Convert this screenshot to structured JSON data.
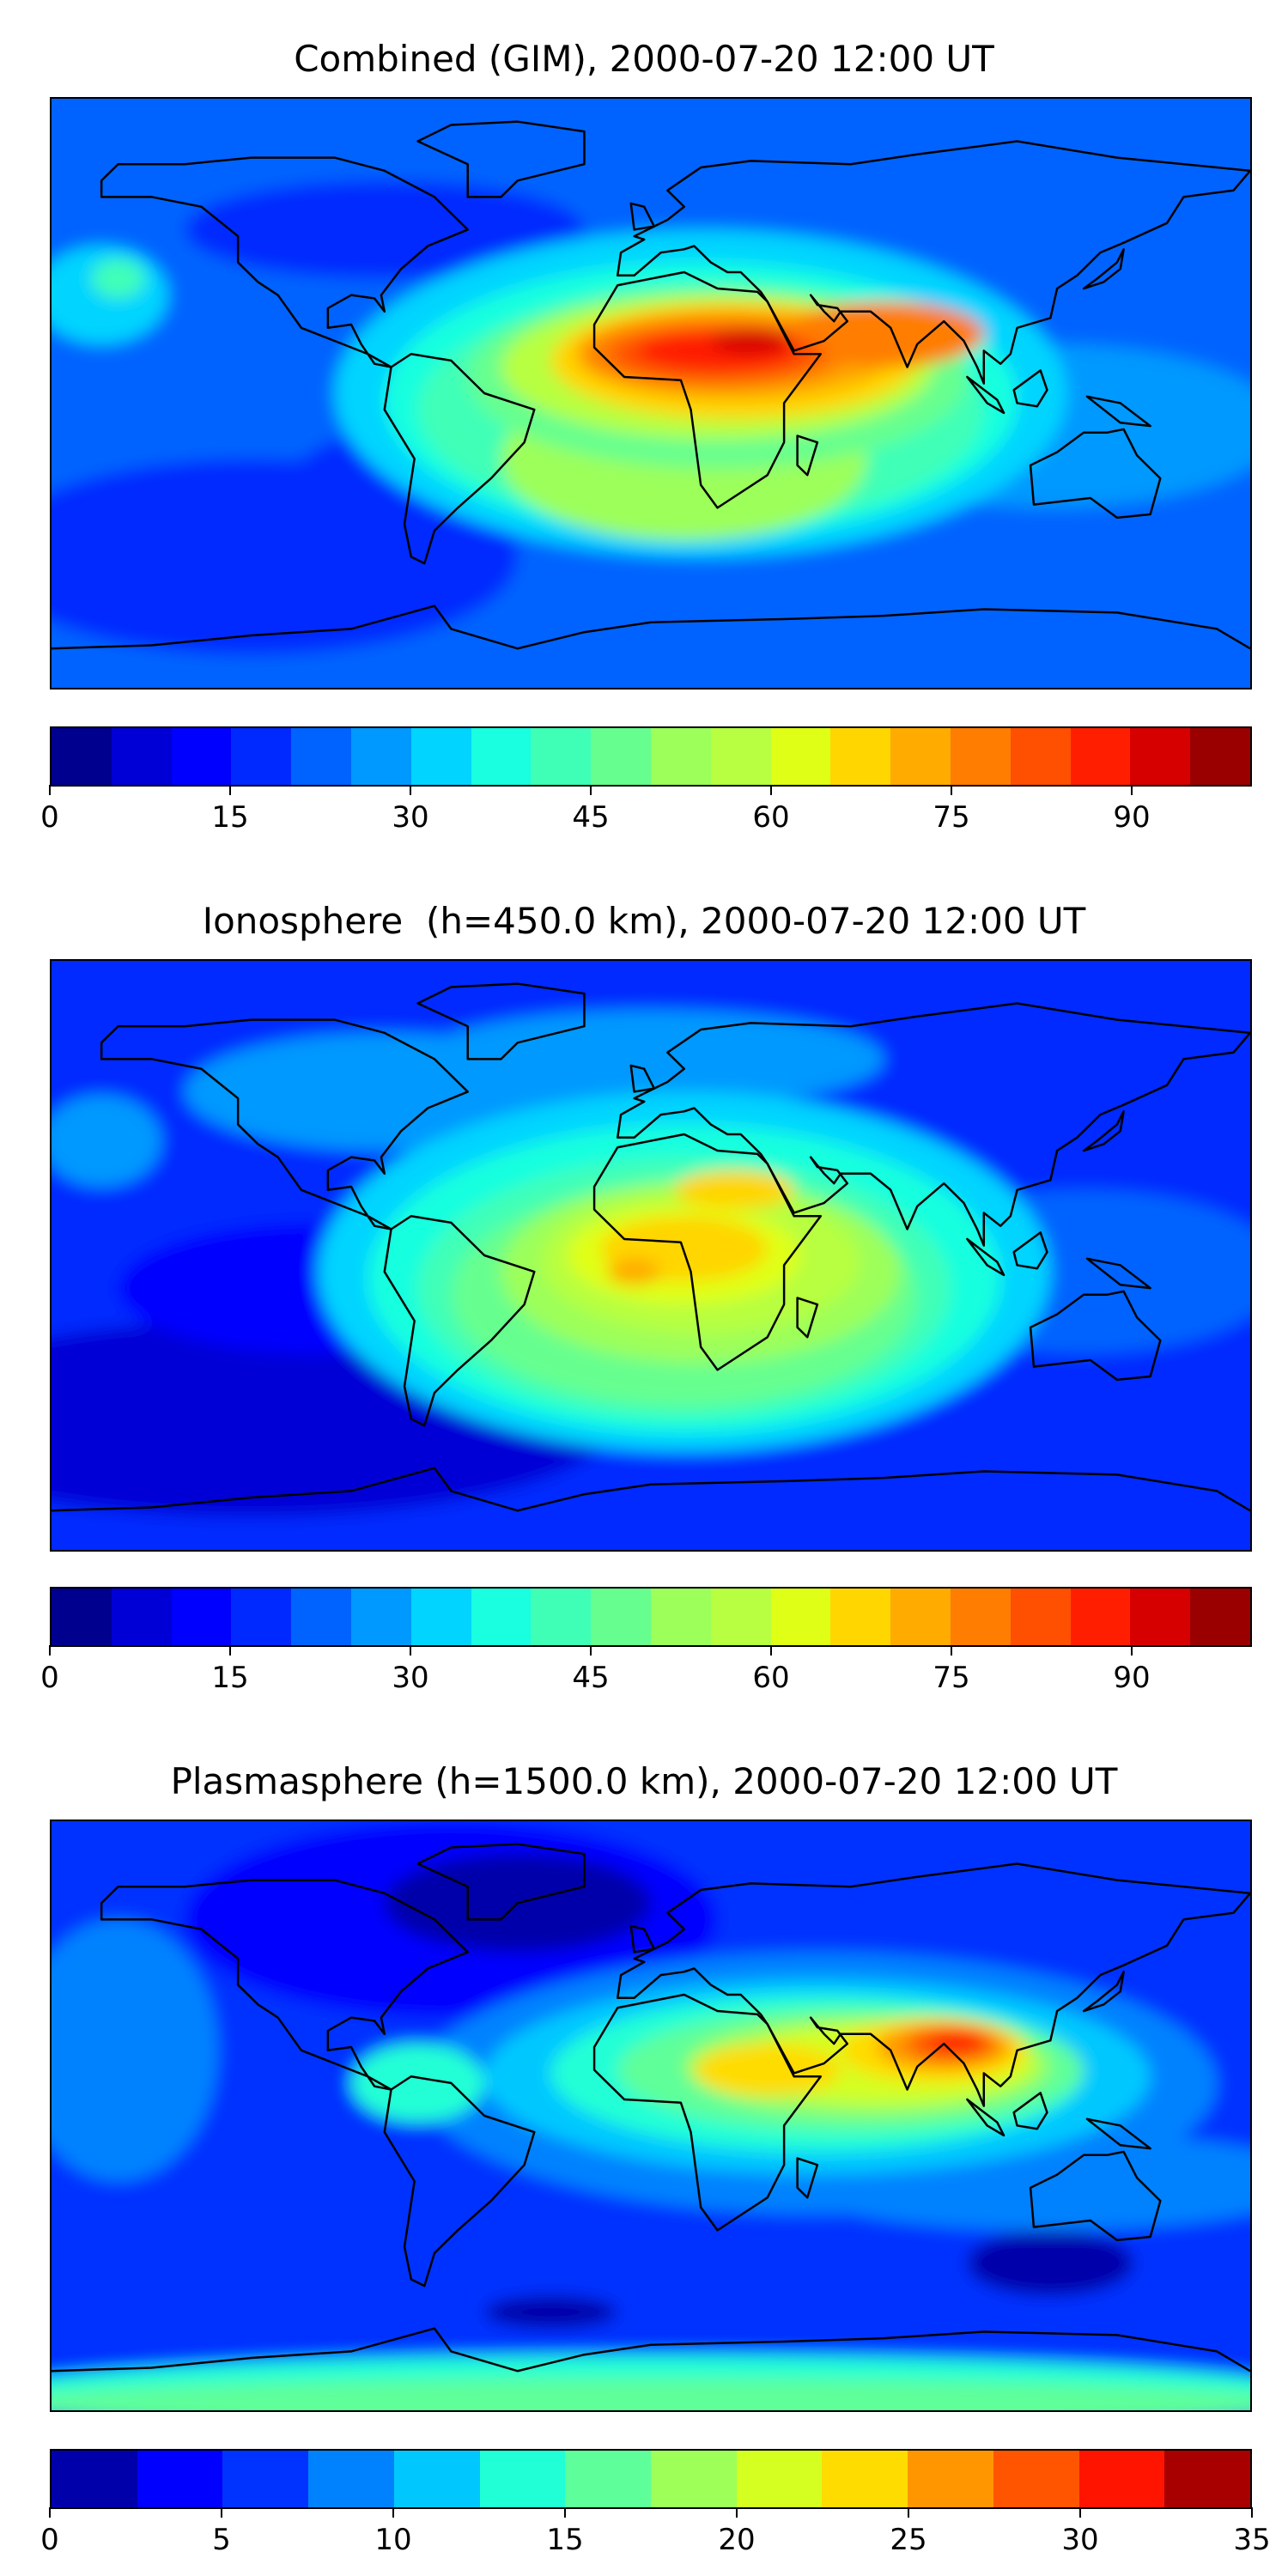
{
  "chart_data": [
    {
      "type": "heatmap",
      "title": "Combined (GIM), 2000-07-20 12:00 UT",
      "projection": "global lat-lon map with coastlines",
      "colorbar": {
        "min": 0,
        "max": 100,
        "step": 5,
        "ticks": [
          "0",
          "15",
          "30",
          "45",
          "60",
          "75",
          "90"
        ]
      },
      "levels_colors": [
        "#00008f",
        "#0000d6",
        "#0000ff",
        "#0029ff",
        "#0063ff",
        "#0099ff",
        "#00d4ff",
        "#19ffdf",
        "#3fffb7",
        "#66ff8f",
        "#9cff5a",
        "#b7ff40",
        "#e0ff16",
        "#ffd600",
        "#ffab00",
        "#ff7d00",
        "#ff4f00",
        "#ff1f00",
        "#d60000",
        "#9a0000"
      ],
      "features": {
        "max_region": "equatorial Africa / Red Sea",
        "approx_max": 95,
        "approx_min": 10
      }
    },
    {
      "type": "heatmap",
      "title": "Ionosphere  (h=450.0 km), 2000-07-20 12:00 UT",
      "projection": "global lat-lon map with coastlines",
      "colorbar": {
        "min": 0,
        "max": 100,
        "step": 5,
        "ticks": [
          "0",
          "15",
          "30",
          "45",
          "60",
          "75",
          "90"
        ]
      },
      "levels_colors": [
        "#00008f",
        "#0000d6",
        "#0000ff",
        "#0029ff",
        "#0063ff",
        "#0099ff",
        "#00d4ff",
        "#19ffdf",
        "#3fffb7",
        "#66ff8f",
        "#9cff5a",
        "#b7ff40",
        "#e0ff16",
        "#ffd600",
        "#ffab00",
        "#ff7d00",
        "#ff4f00",
        "#ff1f00",
        "#d60000",
        "#9a0000"
      ],
      "features": {
        "max_region": "west/central Africa",
        "approx_max": 75,
        "approx_min": 5
      }
    },
    {
      "type": "heatmap",
      "title": "Plasmasphere (h=1500.0 km), 2000-07-20 12:00 UT",
      "projection": "global lat-lon map with coastlines",
      "colorbar": {
        "min": 0,
        "max": 35,
        "step": 2.5,
        "ticks": [
          "0",
          "5",
          "10",
          "15",
          "20",
          "25",
          "30",
          "35"
        ]
      },
      "levels_colors": [
        "#0000aa",
        "#0000ff",
        "#0033ff",
        "#0082ff",
        "#00c8ff",
        "#20ffd6",
        "#5eff9a",
        "#9eff58",
        "#d4ff20",
        "#ffdc00",
        "#ff9600",
        "#ff5500",
        "#ff1400",
        "#a80000"
      ],
      "features": {
        "max_region": "Bay of Bengal / India",
        "approx_max": 32,
        "approx_min": 2.5
      }
    }
  ]
}
